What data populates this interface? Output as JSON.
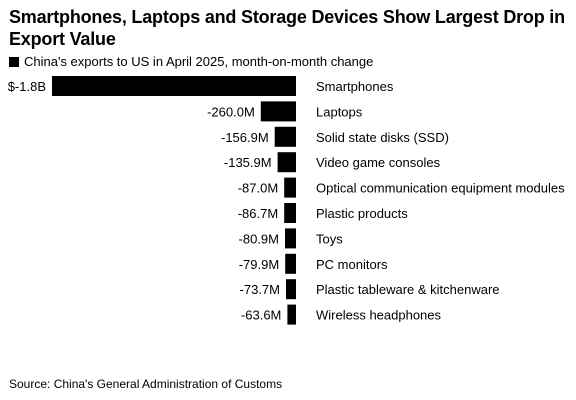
{
  "chart_data": {
    "type": "bar",
    "orientation": "horizontal",
    "title": "Smartphones, Laptops and Storage Devices Show Largest Drop in Export Value",
    "legend": "China's exports to US in April 2025, month-on-month change",
    "source": "Source: China's General Administration of Customs",
    "bar_color": "#000000",
    "categories": [
      "Smartphones",
      "Laptops",
      "Solid state disks (SSD)",
      "Video game consoles",
      "Optical communication equipment modules",
      "Plastic products",
      "Toys",
      "PC monitors",
      "Plastic tableware & kitchenware",
      "Wireless headphones"
    ],
    "values": [
      -1800,
      -260.0,
      -156.9,
      -135.9,
      -87.0,
      -86.7,
      -80.9,
      -79.9,
      -73.7,
      -63.6
    ],
    "unit": "million USD",
    "data_labels": [
      "$-1.8B",
      "-260.0M",
      "-156.9M",
      "-135.9M",
      "-87.0M",
      "-86.7M",
      "-80.9M",
      "-79.9M",
      "-73.7M",
      "-63.6M"
    ],
    "xlim": [
      -1800,
      0
    ]
  }
}
